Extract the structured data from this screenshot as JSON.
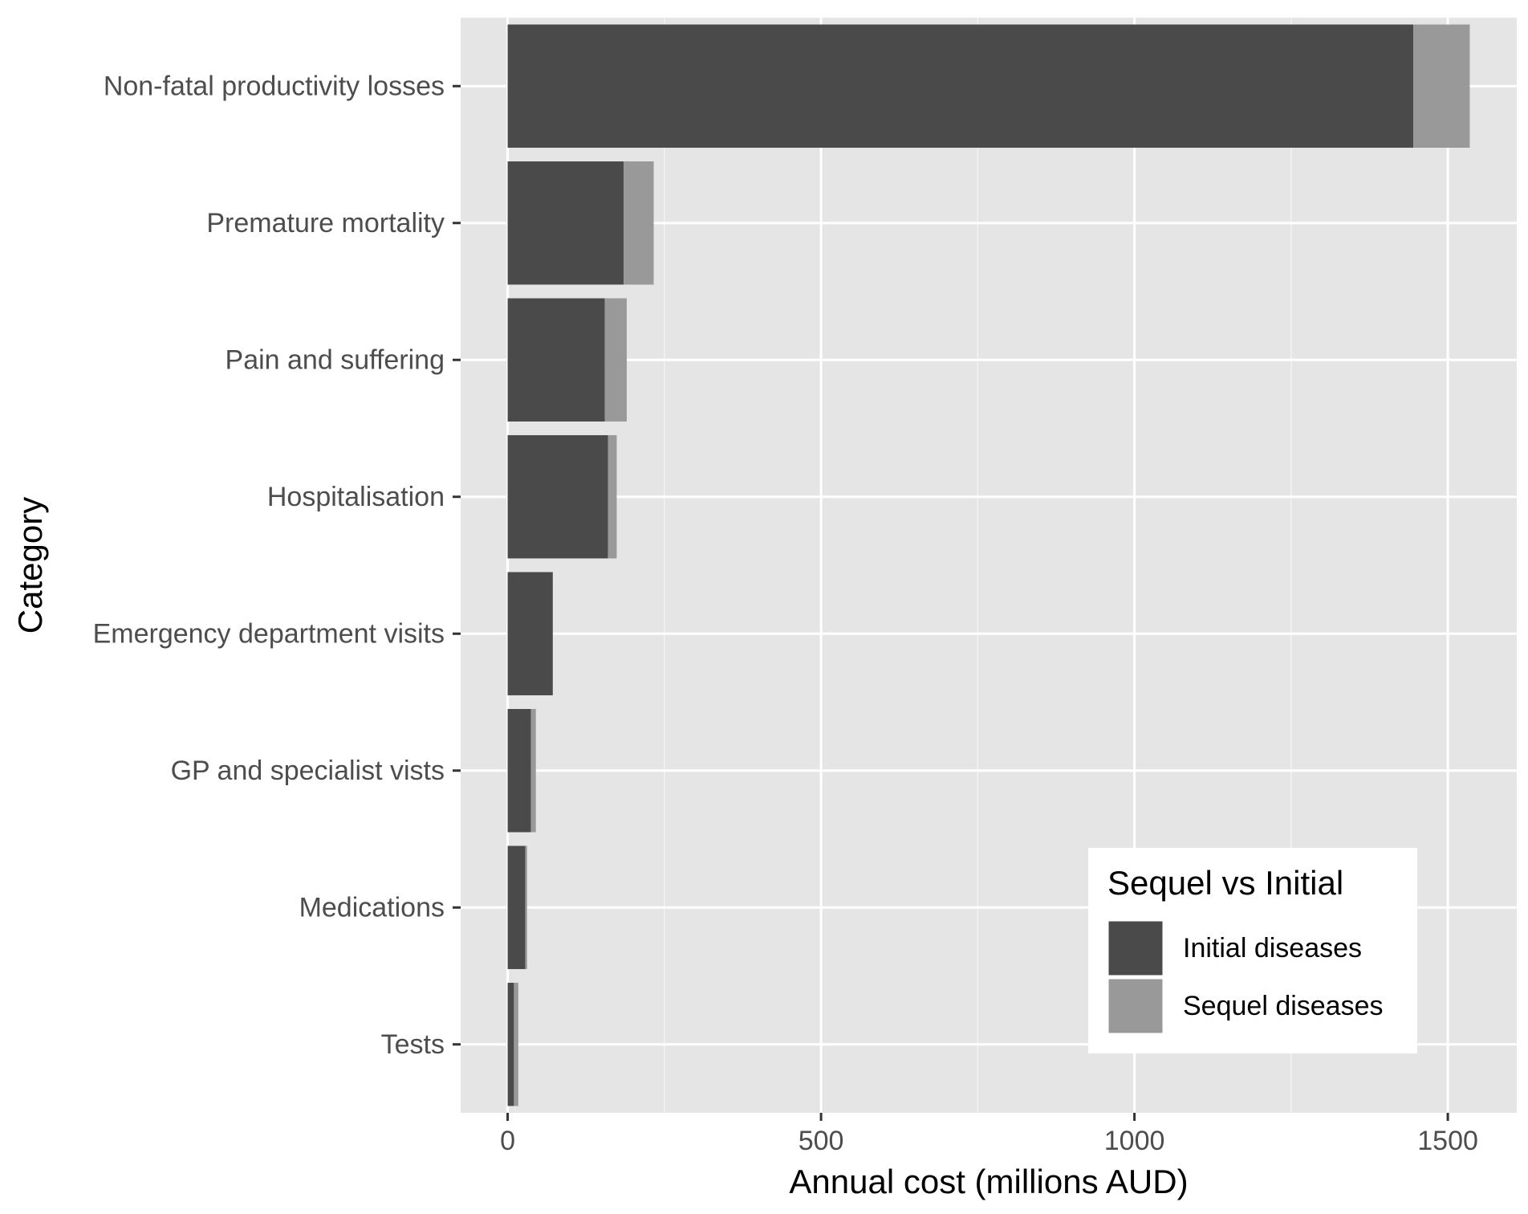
{
  "chart_data": {
    "type": "bar",
    "orientation": "horizontal",
    "stacked": true,
    "categories": [
      "Non-fatal productivity losses",
      "Premature mortality",
      "Pain and suffering",
      "Hospitalisation",
      "Emergency department visits",
      "GP and specialist vists",
      "Medications",
      "Tests"
    ],
    "series": [
      {
        "name": "Initial diseases",
        "color": "#4a4a4a",
        "values": [
          1445,
          185,
          155,
          160,
          72,
          37,
          28,
          10
        ]
      },
      {
        "name": "Sequel diseases",
        "color": "#999999",
        "values": [
          90,
          48,
          35,
          14,
          0,
          8,
          3,
          7
        ]
      }
    ],
    "xlabel": "Annual cost (millions AUD)",
    "ylabel": "Category",
    "xlim": [
      -75,
      1610
    ],
    "xticks": [
      0,
      500,
      1000,
      1500
    ],
    "xtick_labels": [
      "0",
      "500",
      "1000",
      "1500"
    ],
    "grid": true,
    "legend": {
      "title": "Sequel vs Initial",
      "placement": "bottom-right inside",
      "entries": [
        "Initial diseases",
        "Sequel diseases"
      ]
    },
    "panel_color": "#e5e5e5"
  }
}
